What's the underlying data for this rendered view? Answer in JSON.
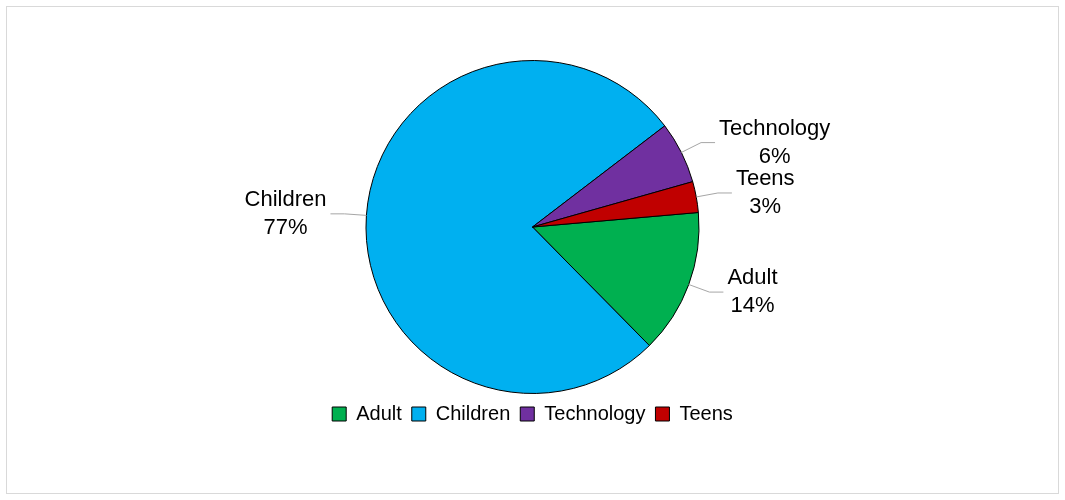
{
  "chart_data": {
    "type": "pie",
    "categories": [
      "Adult",
      "Children",
      "Technology",
      "Teens"
    ],
    "values": [
      14,
      77,
      6,
      3
    ],
    "colors": [
      "#00b050",
      "#00b0f0",
      "#7030a0",
      "#c00000"
    ],
    "value_labels": [
      "14%",
      "77%",
      "6%",
      "3%"
    ],
    "legend": "bottom"
  }
}
